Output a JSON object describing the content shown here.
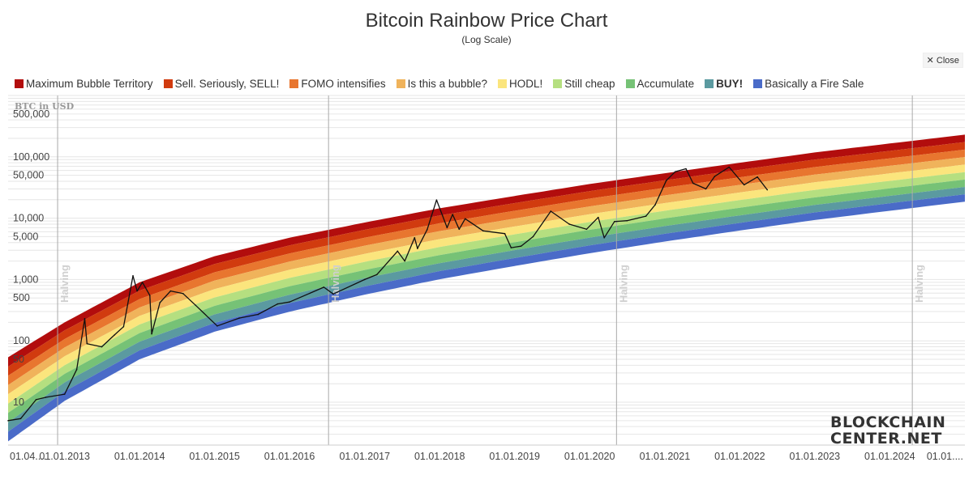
{
  "header": {
    "title": "Bitcoin Rainbow Price Chart",
    "subtitle": "(Log Scale)",
    "close_label": "Close",
    "close_icon": "close-x-icon"
  },
  "legend": [
    {
      "label": "Maximum Bubble Territory",
      "color": "#b20d0d",
      "bold": false
    },
    {
      "label": "Sell. Seriously, SELL!",
      "color": "#d13b0f",
      "bold": false
    },
    {
      "label": "FOMO intensifies",
      "color": "#e8762f",
      "bold": false
    },
    {
      "label": "Is this a bubble?",
      "color": "#f0b35b",
      "bold": false
    },
    {
      "label": "HODL!",
      "color": "#fbe57d",
      "bold": false
    },
    {
      "label": "Still cheap",
      "color": "#b5df80",
      "bold": false
    },
    {
      "label": "Accumulate",
      "color": "#76c276",
      "bold": false
    },
    {
      "label": "BUY!",
      "color": "#5b9aa0",
      "bold": true
    },
    {
      "label": "Basically a Fire Sale",
      "color": "#4a6bc8",
      "bold": false
    }
  ],
  "watermark": {
    "line1": "BLOCKCHAIN",
    "line2": "CENTER.NET"
  },
  "chart_data": {
    "type": "line",
    "title": "Bitcoin Rainbow Price Chart",
    "subtitle": "(Log Scale)",
    "ylabel": "BTC in USD",
    "yscale": "log",
    "ylim": [
      2,
      1000000
    ],
    "xlim": [
      "2012-04-01",
      "2025-01-01"
    ],
    "y_ticks": [
      "500,000",
      "100,000",
      "50,000",
      "10,000",
      "5,000",
      "1,000",
      "500",
      "100",
      "50",
      "10"
    ],
    "y_tick_values": [
      500000,
      100000,
      50000,
      10000,
      5000,
      1000,
      500,
      100,
      50,
      10
    ],
    "x_ticks": [
      "01.04....",
      "01.01.2013",
      "01.01.2014",
      "01.01.2015",
      "01.01.2016",
      "01.01.2017",
      "01.01.2018",
      "01.01.2019",
      "01.01.2020",
      "01.01.2021",
      "01.01.2022",
      "01.01.2023",
      "01.01.2024",
      "01.01...."
    ],
    "x_tick_dates": [
      "2012-04-01",
      "2013-01-01",
      "2014-01-01",
      "2015-01-01",
      "2016-01-01",
      "2017-01-01",
      "2018-01-01",
      "2019-01-01",
      "2020-01-01",
      "2021-01-01",
      "2022-01-01",
      "2023-01-01",
      "2024-01-01",
      "2025-01-01"
    ],
    "halvings": [
      {
        "label": "Halving",
        "date": "2012-11-28"
      },
      {
        "label": "Halving",
        "date": "2016-07-09"
      },
      {
        "label": "Halving",
        "date": "2020-05-11"
      },
      {
        "label": "Halving",
        "date": "2024-04-20"
      }
    ],
    "bands": {
      "x": [
        "2012-04-01",
        "2013-01-01",
        "2014-01-01",
        "2015-01-01",
        "2016-01-01",
        "2017-01-01",
        "2018-01-01",
        "2019-01-01",
        "2020-01-01",
        "2021-01-01",
        "2022-01-01",
        "2023-01-01",
        "2024-01-01",
        "2025-01-01"
      ],
      "boundaries": [
        {
          "name": "top",
          "values": [
            54,
            200,
            900,
            2400,
            4800,
            8500,
            14500,
            23000,
            36000,
            54000,
            80000,
            118000,
            165000,
            230000
          ]
        },
        {
          "name": "b1",
          "values": [
            38,
            148,
            660,
            1790,
            3600,
            6450,
            11050,
            17600,
            27600,
            41400,
            61400,
            90000,
            125000,
            174000
          ]
        },
        {
          "name": "b2",
          "values": [
            27,
            107,
            480,
            1310,
            2660,
            4800,
            8250,
            13200,
            20800,
            31300,
            46400,
            68000,
            94500,
            131000
          ]
        },
        {
          "name": "b3",
          "values": [
            19,
            78,
            350,
            960,
            1960,
            3560,
            6150,
            9850,
            15550,
            23500,
            34900,
            51200,
            71300,
            99000
          ]
        },
        {
          "name": "b4",
          "values": [
            13.5,
            56,
            255,
            700,
            1440,
            2620,
            4560,
            7320,
            11600,
            17600,
            26200,
            38400,
            53700,
            74600
          ]
        },
        {
          "name": "b5",
          "values": [
            9.5,
            40,
            185,
            510,
            1060,
            1940,
            3380,
            5450,
            8650,
            13200,
            19700,
            28900,
            40500,
            56300
          ]
        },
        {
          "name": "b6",
          "values": [
            6.7,
            29,
            134,
            372,
            775,
            1430,
            2500,
            4050,
            6460,
            9900,
            14800,
            21800,
            30600,
            42600
          ]
        },
        {
          "name": "b7",
          "values": [
            4.7,
            21,
            97,
            270,
            565,
            1050,
            1850,
            3010,
            4820,
            7420,
            11100,
            16400,
            23100,
            32300
          ]
        },
        {
          "name": "b8",
          "values": [
            3.3,
            15,
            70,
            196,
            412,
            770,
            1370,
            2240,
            3600,
            5560,
            8370,
            12400,
            17500,
            24500
          ]
        },
        {
          "name": "bottom",
          "values": [
            2.3,
            10.5,
            50,
            141,
            299,
            566,
            1010,
            1660,
            2680,
            4160,
            6280,
            9330,
            13200,
            18600
          ]
        }
      ]
    },
    "price_series": {
      "name": "BTC Price",
      "x": [
        "2012-04-01",
        "2012-06-01",
        "2012-08-15",
        "2012-10-01",
        "2013-01-01",
        "2013-03-01",
        "2013-04-09",
        "2013-04-20",
        "2013-07-01",
        "2013-09-01",
        "2013-10-15",
        "2013-11-30",
        "2013-12-20",
        "2014-01-15",
        "2014-02-20",
        "2014-03-01",
        "2014-04-10",
        "2014-06-01",
        "2014-08-01",
        "2014-10-01",
        "2015-01-14",
        "2015-05-01",
        "2015-08-01",
        "2015-11-04",
        "2016-01-01",
        "2016-06-16",
        "2016-08-01",
        "2017-01-01",
        "2017-03-01",
        "2017-06-10",
        "2017-07-15",
        "2017-09-01",
        "2017-09-15",
        "2017-11-01",
        "2017-12-17",
        "2018-02-06",
        "2018-03-05",
        "2018-04-06",
        "2018-05-05",
        "2018-08-01",
        "2018-11-14",
        "2018-12-15",
        "2019-02-01",
        "2019-04-01",
        "2019-06-26",
        "2019-09-24",
        "2019-12-17",
        "2020-02-12",
        "2020-03-12",
        "2020-05-01",
        "2020-07-01",
        "2020-10-01",
        "2020-11-15",
        "2021-01-08",
        "2021-02-20",
        "2021-04-14",
        "2021-05-19",
        "2021-07-20",
        "2021-09-01",
        "2021-11-10",
        "2022-01-22",
        "2022-03-28",
        "2022-05-15"
      ],
      "values": [
        5,
        5.4,
        11,
        12,
        13.5,
        34,
        230,
        90,
        80,
        125,
        170,
        1150,
        650,
        900,
        550,
        130,
        420,
        650,
        590,
        380,
        175,
        235,
        270,
        400,
        430,
        750,
        580,
        1000,
        1200,
        2900,
        2000,
        4800,
        3200,
        6500,
        19800,
        7000,
        11500,
        6600,
        9800,
        6200,
        5600,
        3300,
        3500,
        5000,
        13000,
        8000,
        6600,
        10300,
        4800,
        8800,
        9100,
        10800,
        16500,
        41000,
        57000,
        64000,
        37000,
        30000,
        48000,
        68000,
        35000,
        47000,
        29000
      ]
    }
  }
}
